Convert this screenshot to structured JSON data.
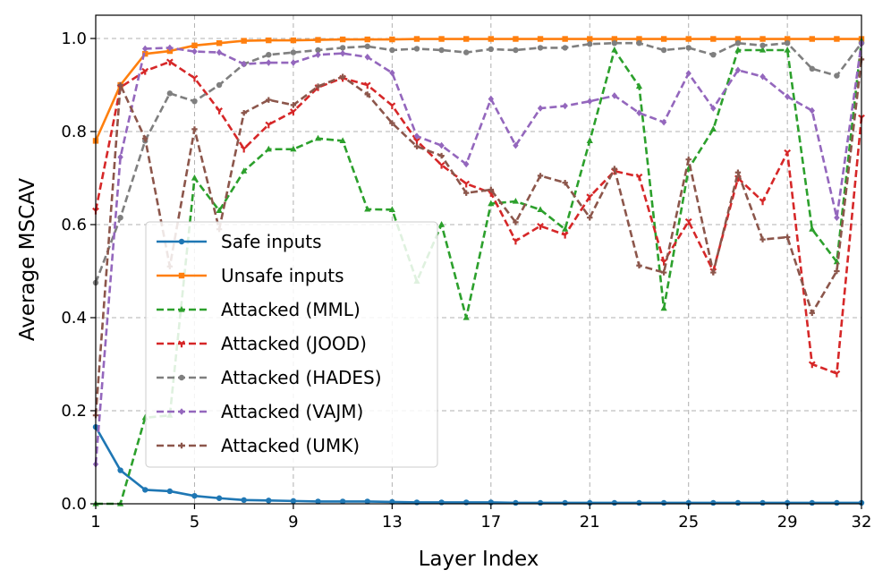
{
  "chart_data": {
    "type": "line",
    "title": "",
    "xlabel": "Layer Index",
    "ylabel": "Average MSCAV",
    "xlim": [
      1,
      32
    ],
    "ylim": [
      0.0,
      1.05
    ],
    "x_ticks": [
      1,
      5,
      9,
      13,
      17,
      21,
      25,
      29,
      32
    ],
    "y_ticks": [
      0.0,
      0.2,
      0.4,
      0.6,
      0.8,
      1.0
    ],
    "y_tick_labels": [
      "0.0",
      "0.2",
      "0.4",
      "0.6",
      "0.8",
      "1.0"
    ],
    "grid": true,
    "legend_position": "center-left",
    "x": [
      1,
      2,
      3,
      4,
      5,
      6,
      7,
      8,
      9,
      10,
      11,
      12,
      13,
      14,
      15,
      16,
      17,
      18,
      19,
      20,
      21,
      22,
      23,
      24,
      25,
      26,
      27,
      28,
      29,
      30,
      31,
      32
    ],
    "series": [
      {
        "name": "Safe inputs",
        "color": "#1f77b4",
        "dash": "solid",
        "marker": "circle",
        "values": [
          0.165,
          0.072,
          0.03,
          0.027,
          0.017,
          0.012,
          0.008,
          0.007,
          0.006,
          0.005,
          0.005,
          0.005,
          0.004,
          0.003,
          0.003,
          0.003,
          0.003,
          0.002,
          0.002,
          0.002,
          0.002,
          0.002,
          0.002,
          0.002,
          0.002,
          0.002,
          0.002,
          0.002,
          0.002,
          0.002,
          0.002,
          0.002
        ]
      },
      {
        "name": "Unsafe inputs",
        "color": "#ff7f0e",
        "dash": "solid",
        "marker": "square",
        "values": [
          0.78,
          0.9,
          0.967,
          0.973,
          0.985,
          0.99,
          0.995,
          0.996,
          0.996,
          0.997,
          0.998,
          0.998,
          0.998,
          0.999,
          0.999,
          0.999,
          0.999,
          0.999,
          0.999,
          0.999,
          0.999,
          0.999,
          0.999,
          0.999,
          0.999,
          0.999,
          0.999,
          0.999,
          0.999,
          0.999,
          0.999,
          0.999
        ]
      },
      {
        "name": "Attacked (MML)",
        "color": "#2ca02c",
        "dash": "dashed",
        "marker": "triangle",
        "values": [
          0.0,
          0.0,
          0.185,
          0.19,
          0.7,
          0.63,
          0.715,
          0.762,
          0.762,
          0.785,
          0.78,
          0.633,
          0.632,
          0.478,
          0.6,
          0.4,
          0.645,
          0.65,
          0.632,
          0.59,
          0.78,
          0.975,
          0.897,
          0.42,
          0.72,
          0.805,
          0.975,
          0.975,
          0.975,
          0.59,
          0.52,
          0.995
        ]
      },
      {
        "name": "Attacked (JOOD)",
        "color": "#d62728",
        "dash": "dashed",
        "marker": "tri-down",
        "values": [
          0.63,
          0.895,
          0.93,
          0.95,
          0.915,
          0.845,
          0.763,
          0.815,
          0.843,
          0.895,
          0.915,
          0.9,
          0.856,
          0.78,
          0.728,
          0.688,
          0.668,
          0.565,
          0.597,
          0.578,
          0.66,
          0.715,
          0.703,
          0.52,
          0.607,
          0.5,
          0.7,
          0.65,
          0.755,
          0.3,
          0.28,
          0.83
        ]
      },
      {
        "name": "Attacked (HADES)",
        "color": "#7f7f7f",
        "dash": "dashed",
        "marker": "circle",
        "values": [
          0.475,
          0.615,
          0.78,
          0.882,
          0.865,
          0.9,
          0.945,
          0.965,
          0.97,
          0.975,
          0.98,
          0.983,
          0.975,
          0.978,
          0.975,
          0.97,
          0.977,
          0.975,
          0.98,
          0.98,
          0.988,
          0.99,
          0.99,
          0.975,
          0.98,
          0.965,
          0.99,
          0.985,
          0.99,
          0.935,
          0.92,
          0.99
        ]
      },
      {
        "name": "Attacked (VAJM)",
        "color": "#9467bd",
        "dash": "dashed",
        "marker": "diamond",
        "values": [
          0.085,
          0.745,
          0.978,
          0.98,
          0.972,
          0.97,
          0.945,
          0.948,
          0.948,
          0.965,
          0.968,
          0.96,
          0.926,
          0.79,
          0.77,
          0.73,
          0.87,
          0.77,
          0.85,
          0.855,
          0.865,
          0.877,
          0.84,
          0.82,
          0.925,
          0.85,
          0.932,
          0.918,
          0.875,
          0.845,
          0.615,
          0.99
        ]
      },
      {
        "name": "Attacked (UMK)",
        "color": "#8c564b",
        "dash": "dashed",
        "marker": "plus",
        "values": [
          0.19,
          0.9,
          0.785,
          0.51,
          0.805,
          0.59,
          0.84,
          0.868,
          0.857,
          0.897,
          0.918,
          0.88,
          0.818,
          0.768,
          0.748,
          0.668,
          0.675,
          0.605,
          0.705,
          0.69,
          0.615,
          0.72,
          0.512,
          0.497,
          0.74,
          0.497,
          0.712,
          0.568,
          0.573,
          0.41,
          0.5,
          0.955
        ]
      }
    ]
  }
}
